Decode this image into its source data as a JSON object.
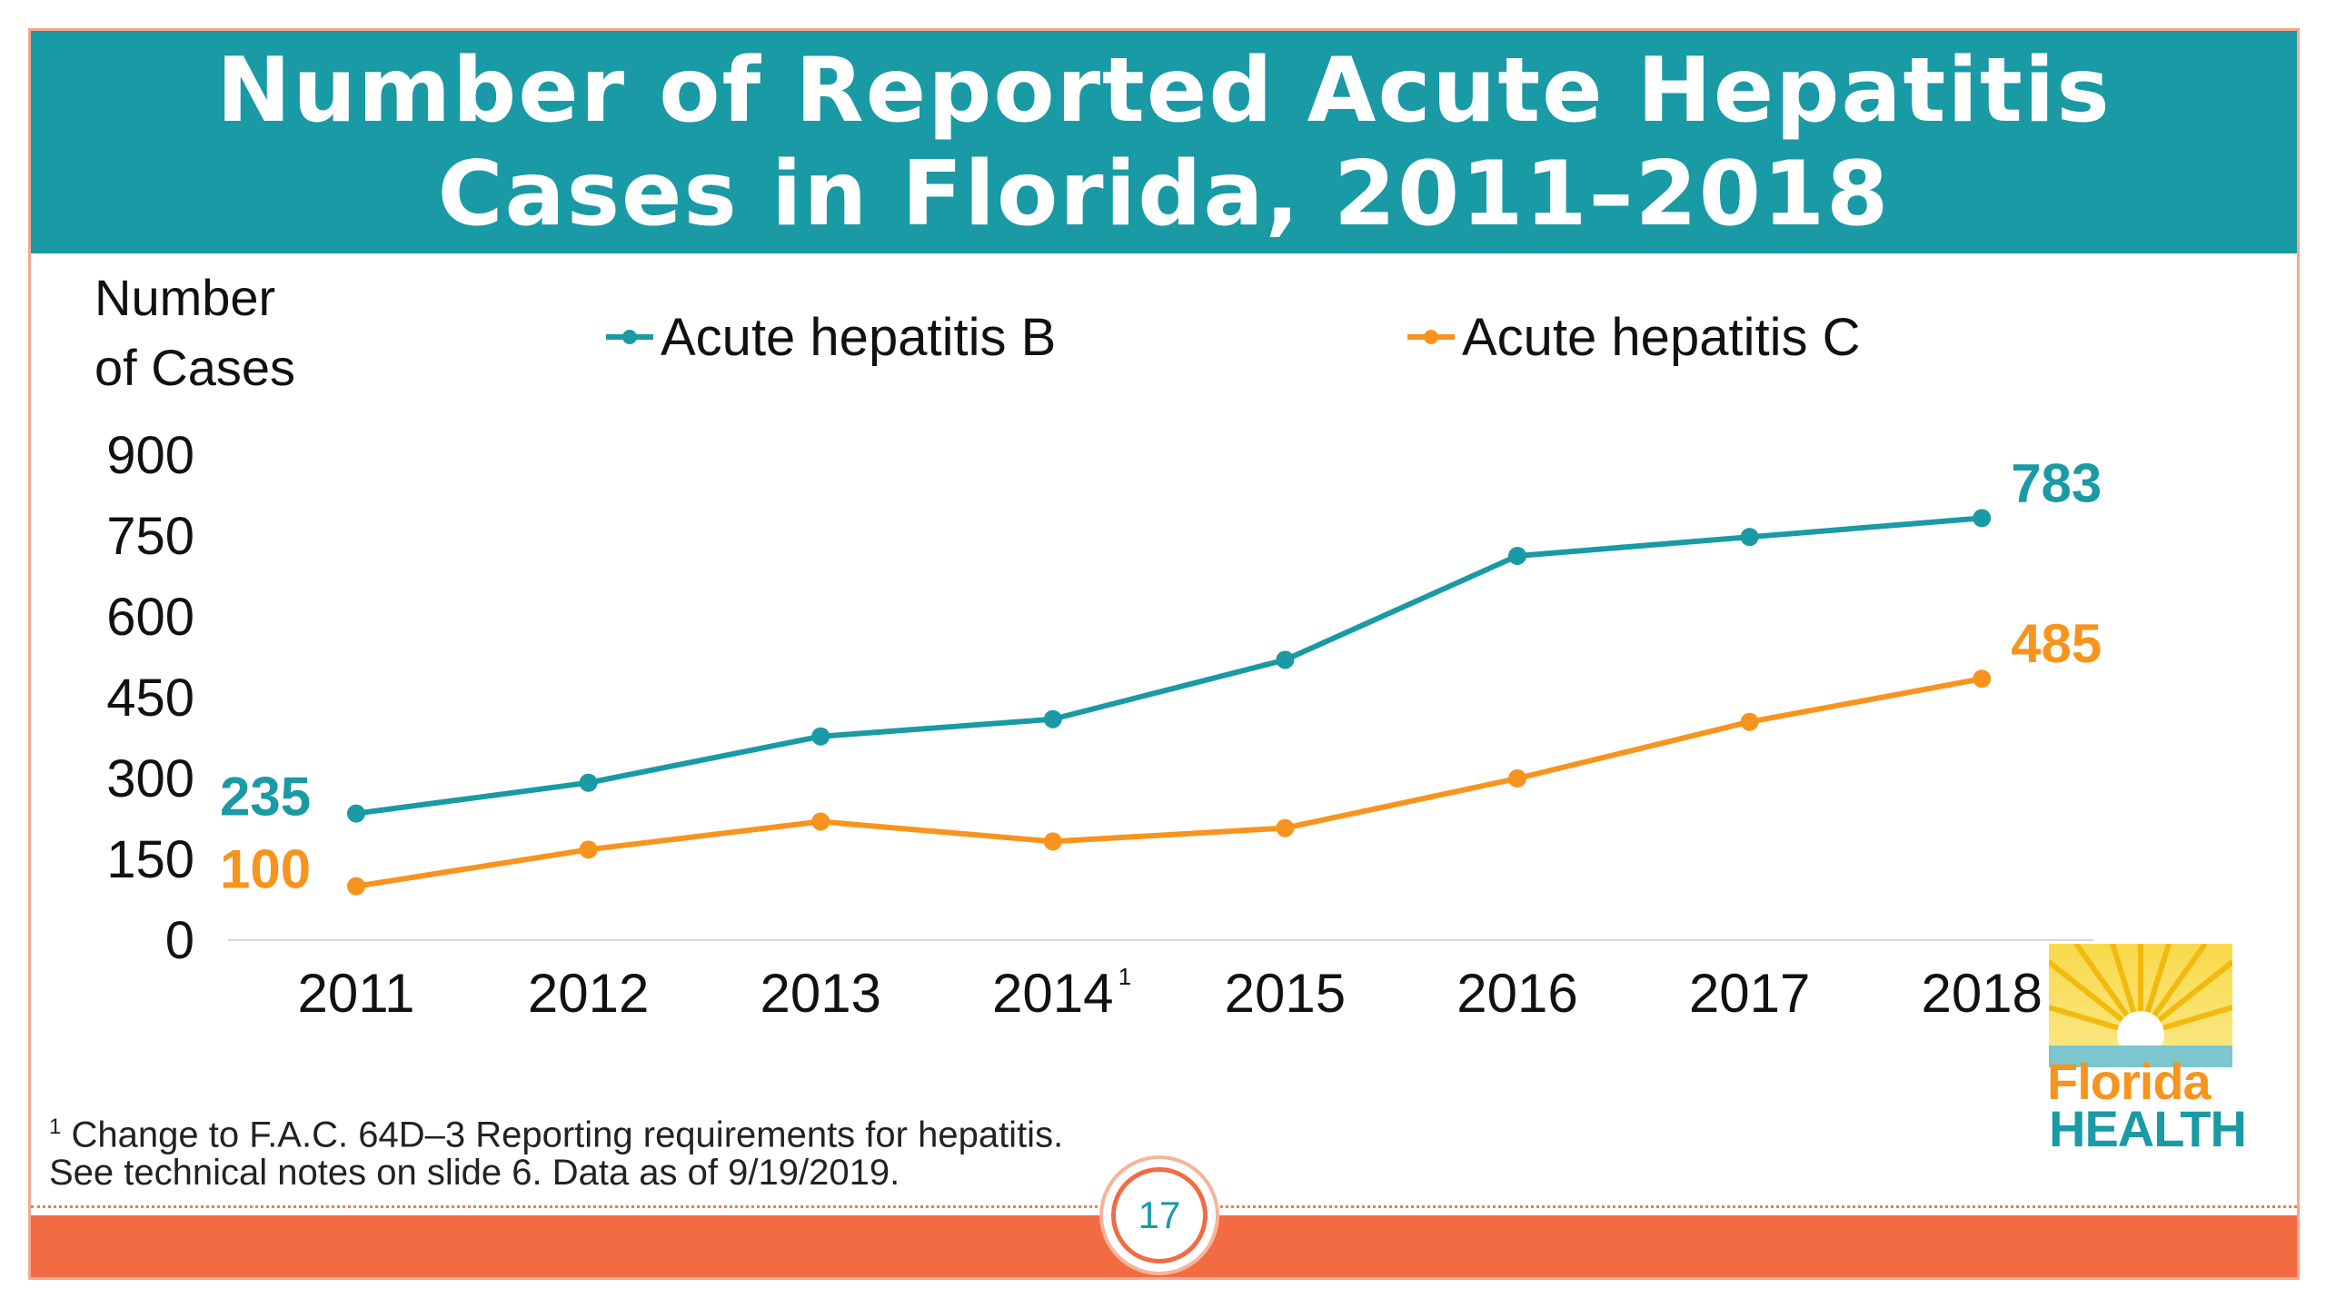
{
  "slide": {
    "title_line1": "Number of Reported Acute Hepatitis",
    "title_line2": "Cases in Florida, 2011–2018",
    "footnote_line1": "Change to F.A.C. 64D–3 Reporting requirements for hepatitis.",
    "footnote_marker": "1",
    "footnote_line2": "See technical notes on slide 6. Data as of 9/19/2019.",
    "page_number": "17",
    "logo_line1": "Florida",
    "logo_line2": "HEALTH"
  },
  "colors": {
    "title_band": "#199aa5",
    "series_b": "#199aa5",
    "series_c": "#f7941d",
    "accent_bar": "#f26b43"
  },
  "chart_data": {
    "type": "line",
    "title": "Number of Reported Acute Hepatitis Cases in Florida, 2011–2018",
    "ylabel": "Number of Cases",
    "xlabel": "",
    "categories": [
      "2011",
      "2012",
      "2013",
      "2014",
      "2015",
      "2016",
      "2017",
      "2018"
    ],
    "category_superscripts": [
      "",
      "",
      "",
      "1",
      "",
      "",
      "",
      ""
    ],
    "ylim": [
      0,
      900
    ],
    "yticks": [
      0,
      150,
      300,
      450,
      600,
      750,
      900
    ],
    "grid": false,
    "legend_position": "top",
    "series": [
      {
        "name": "Acute hepatitis B",
        "color": "#199aa5",
        "values": [
          235,
          292,
          378,
          410,
          520,
          713,
          748,
          783
        ],
        "labels": [
          "235",
          "",
          "",
          "",
          "",
          "",
          "",
          "783"
        ]
      },
      {
        "name": "Acute hepatitis C",
        "color": "#f7941d",
        "values": [
          100,
          168,
          220,
          183,
          208,
          300,
          405,
          485
        ],
        "labels": [
          "100",
          "",
          "",
          "",
          "",
          "",
          "",
          "485"
        ]
      }
    ]
  }
}
